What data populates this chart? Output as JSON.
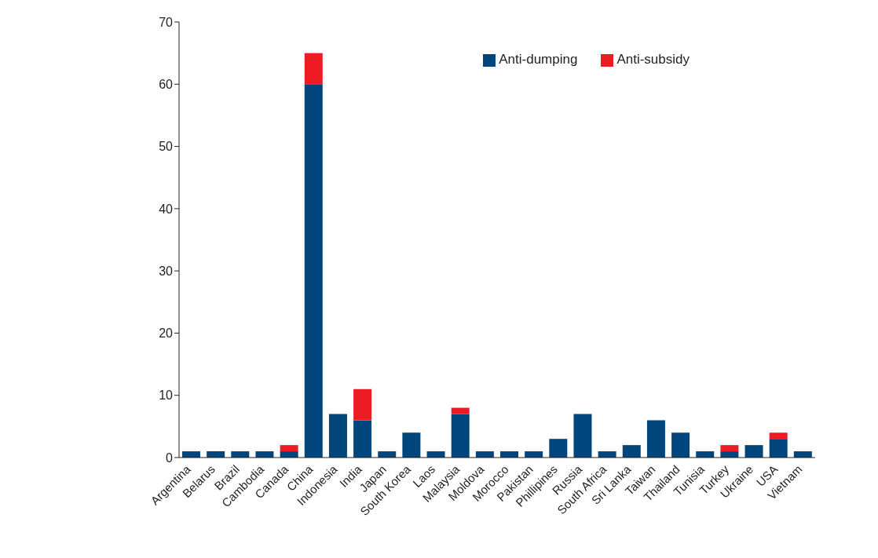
{
  "chart_data": {
    "type": "bar",
    "stacked": true,
    "categories": [
      "Argentina",
      "Belarus",
      "Brazil",
      "Cambodia",
      "Canada",
      "China",
      "Indonesia",
      "India",
      "Japan",
      "South Korea",
      "Laos",
      "Malaysia",
      "Moldova",
      "Morocco",
      "Pakistan",
      "Phillipines",
      "Russia",
      "South Africa",
      "Sri Lanka",
      "Taiwan",
      "Thailand",
      "Tunisia",
      "Turkey",
      "Ukraine",
      "USA",
      "Vietnam"
    ],
    "series": [
      {
        "name": "Anti-dumping",
        "color": "#00457c",
        "values": [
          1,
          1,
          1,
          1,
          1,
          60,
          7,
          6,
          1,
          4,
          1,
          7,
          1,
          1,
          1,
          3,
          7,
          1,
          2,
          6,
          4,
          1,
          1,
          2,
          3,
          1
        ]
      },
      {
        "name": "Anti-subsidy",
        "color": "#ed1c24",
        "values": [
          0,
          0,
          0,
          0,
          1,
          5,
          0,
          5,
          0,
          0,
          0,
          1,
          0,
          0,
          0,
          0,
          0,
          0,
          0,
          0,
          0,
          0,
          1,
          0,
          1,
          0
        ]
      }
    ],
    "ylim": [
      0,
      70
    ],
    "yticks": [
      0,
      10,
      20,
      30,
      40,
      50,
      60,
      70
    ],
    "legend": "top right"
  }
}
